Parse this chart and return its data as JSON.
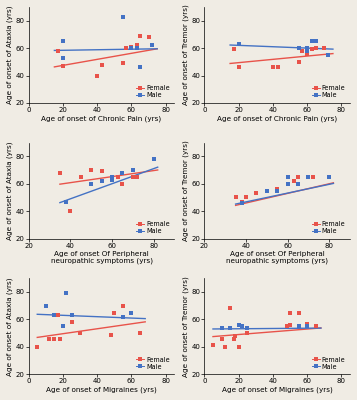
{
  "panels": [
    {
      "xlabel": "Age of onset of Chronic Pain (yrs)",
      "ylabel": "Age of onset of Ataxia (yrs)",
      "xlim": [
        0,
        85
      ],
      "ylim": [
        20,
        90
      ],
      "xticks": [
        0,
        20,
        40,
        60,
        80
      ],
      "yticks": [
        20,
        40,
        60,
        80
      ],
      "female_x": [
        17,
        20,
        40,
        43,
        55,
        57,
        60,
        60,
        63,
        65,
        70
      ],
      "female_y": [
        58,
        47,
        40,
        48,
        49,
        60,
        60,
        61,
        62,
        69,
        68
      ],
      "male_x": [
        20,
        20,
        55,
        60,
        60,
        63,
        65,
        72
      ],
      "male_y": [
        53,
        65,
        83,
        60,
        60,
        60,
        46,
        62
      ],
      "female_slope": 0.22,
      "female_intercept": 43,
      "male_slope": 0.02,
      "male_intercept": 58,
      "line_x_start": 15,
      "line_x_end": 75
    },
    {
      "xlabel": "Age of onset of Chronic Pain (yrs)",
      "ylabel": "Age of onset of Tremor (yrs)",
      "xlim": [
        0,
        85
      ],
      "ylim": [
        20,
        90
      ],
      "xticks": [
        0,
        20,
        40,
        60,
        80
      ],
      "yticks": [
        20,
        40,
        60,
        80
      ],
      "female_x": [
        17,
        20,
        40,
        43,
        55,
        57,
        60,
        60,
        63,
        65,
        70
      ],
      "female_y": [
        59,
        46,
        46,
        46,
        50,
        58,
        60,
        56,
        59,
        60,
        60
      ],
      "male_x": [
        20,
        55,
        60,
        60,
        63,
        65,
        72
      ],
      "male_y": [
        63,
        60,
        60,
        58,
        65,
        65,
        55
      ],
      "female_slope": 0.12,
      "female_intercept": 47,
      "male_slope": -0.05,
      "male_intercept": 63,
      "line_x_start": 15,
      "line_x_end": 75
    },
    {
      "xlabel": "Age of onset Of Peripheral\nneuropathic symptoms (yrs)",
      "ylabel": "Age of onset of Ataxia (yrs)",
      "xlim": [
        20,
        90
      ],
      "ylim": [
        20,
        90
      ],
      "xticks": [
        20,
        40,
        60,
        80
      ],
      "yticks": [
        20,
        40,
        60,
        80
      ],
      "female_x": [
        35,
        38,
        40,
        45,
        50,
        55,
        60,
        60,
        63,
        65,
        70,
        72
      ],
      "female_y": [
        68,
        47,
        40,
        65,
        70,
        69,
        65,
        64,
        65,
        60,
        65,
        65
      ],
      "male_x": [
        38,
        50,
        55,
        60,
        60,
        65,
        70,
        80
      ],
      "male_y": [
        47,
        60,
        62,
        63,
        65,
        68,
        70,
        78
      ],
      "female_slope": 0.22,
      "female_intercept": 52,
      "male_slope": 0.55,
      "male_intercept": 27,
      "line_x_start": 35,
      "line_x_end": 82
    },
    {
      "xlabel": "Age of onset Of Peripheral\nneuropathic symptoms (yrs)",
      "ylabel": "Age of onset of Tremor (yrs)",
      "xlim": [
        20,
        90
      ],
      "ylim": [
        20,
        90
      ],
      "xticks": [
        20,
        40,
        60,
        80
      ],
      "yticks": [
        20,
        40,
        60,
        80
      ],
      "female_x": [
        35,
        38,
        40,
        45,
        50,
        55,
        60,
        60,
        63,
        65,
        70,
        72
      ],
      "female_y": [
        50,
        47,
        50,
        53,
        55,
        56,
        60,
        60,
        62,
        65,
        65,
        65
      ],
      "male_x": [
        38,
        50,
        55,
        60,
        60,
        65,
        70,
        80
      ],
      "male_y": [
        46,
        55,
        55,
        60,
        65,
        60,
        65,
        65
      ],
      "female_slope": 0.35,
      "female_intercept": 32,
      "male_slope": 0.32,
      "male_intercept": 34,
      "line_x_start": 35,
      "line_x_end": 82
    },
    {
      "xlabel": "Age of onset of Migraines (yrs)",
      "ylabel": "Age of onset of Ataxia (yrs)",
      "xlim": [
        0,
        85
      ],
      "ylim": [
        20,
        90
      ],
      "xticks": [
        0,
        20,
        40,
        60,
        80
      ],
      "yticks": [
        20,
        40,
        60,
        80
      ],
      "female_x": [
        5,
        12,
        15,
        17,
        18,
        20,
        25,
        30,
        48,
        50,
        50,
        55,
        65
      ],
      "female_y": [
        40,
        46,
        46,
        63,
        46,
        55,
        58,
        50,
        49,
        65,
        65,
        70,
        50
      ],
      "male_x": [
        10,
        15,
        20,
        22,
        25,
        55,
        60
      ],
      "male_y": [
        70,
        63,
        55,
        79,
        63,
        62,
        65
      ],
      "female_slope": 0.18,
      "female_intercept": 46,
      "male_slope": -0.05,
      "male_intercept": 64,
      "line_x_start": 5,
      "line_x_end": 68
    },
    {
      "xlabel": "Age of onset of Migraines (yrs)",
      "ylabel": "Age of onset of Tremor (yrs)",
      "xlim": [
        0,
        85
      ],
      "ylim": [
        20,
        90
      ],
      "xticks": [
        0,
        20,
        40,
        60,
        80
      ],
      "yticks": [
        20,
        40,
        60,
        80
      ],
      "female_x": [
        5,
        10,
        12,
        15,
        17,
        18,
        20,
        25,
        48,
        50,
        50,
        55,
        60,
        65
      ],
      "female_y": [
        41,
        46,
        40,
        68,
        46,
        48,
        40,
        50,
        55,
        56,
        65,
        65,
        57,
        55
      ],
      "male_x": [
        10,
        15,
        20,
        22,
        25,
        55,
        60
      ],
      "male_y": [
        54,
        54,
        56,
        55,
        54,
        55,
        55
      ],
      "female_slope": 0.1,
      "female_intercept": 47,
      "male_slope": 0.01,
      "male_intercept": 53,
      "line_x_start": 5,
      "line_x_end": 68
    }
  ],
  "female_color": "#e8534a",
  "male_color": "#4472c4",
  "bg_color": "#f0ece4",
  "marker_size": 10,
  "line_width": 1.0,
  "label_font_size": 5.2,
  "tick_font_size": 5.0
}
